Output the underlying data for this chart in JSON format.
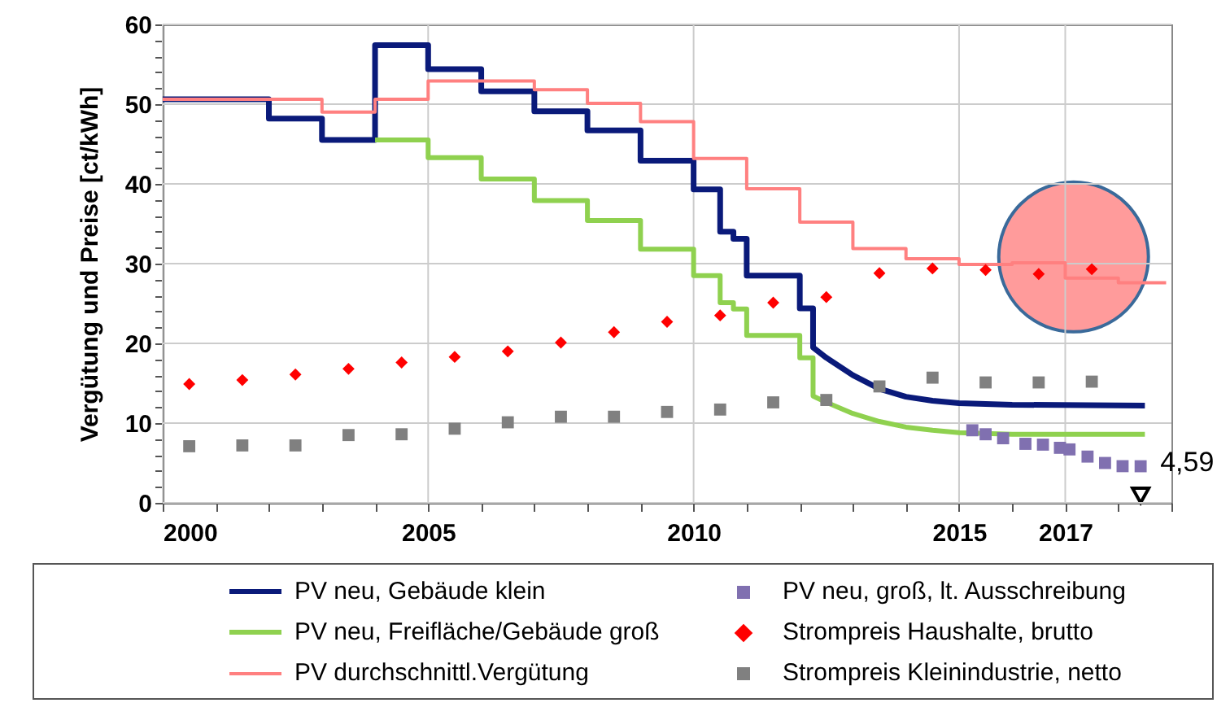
{
  "chart_data": {
    "type": "line",
    "ylabel": "Vergütung und Preise [ct/kWh]",
    "xlim": [
      2000,
      2019
    ],
    "ylim": [
      0,
      60
    ],
    "xticks": [
      2000,
      {
        "value": 2001,
        "label": null
      },
      {
        "value": 2002,
        "label": null
      },
      {
        "value": 2003,
        "label": null
      },
      {
        "value": 2004,
        "label": null
      },
      2005,
      {
        "value": 2006,
        "label": null
      },
      {
        "value": 2007,
        "label": null
      },
      {
        "value": 2008,
        "label": null
      },
      {
        "value": 2009,
        "label": null
      },
      2010,
      {
        "value": 2011,
        "label": null
      },
      {
        "value": 2012,
        "label": null
      },
      {
        "value": 2013,
        "label": null
      },
      {
        "value": 2014,
        "label": null
      },
      2015,
      {
        "value": 2016,
        "label": null
      },
      2017,
      {
        "value": 2018,
        "label": null
      },
      {
        "value": 2019,
        "label": null
      }
    ],
    "yticks": [
      0,
      {
        "value": 2,
        "label": null
      },
      {
        "value": 4,
        "label": null
      },
      {
        "value": 6,
        "label": null
      },
      {
        "value": 8,
        "label": null
      },
      10,
      {
        "value": 12,
        "label": null
      },
      {
        "value": 14,
        "label": null
      },
      {
        "value": 16,
        "label": null
      },
      {
        "value": 18,
        "label": null
      },
      20,
      {
        "value": 22,
        "label": null
      },
      {
        "value": 24,
        "label": null
      },
      {
        "value": 26,
        "label": null
      },
      {
        "value": 28,
        "label": null
      },
      30,
      {
        "value": 32,
        "label": null
      },
      {
        "value": 34,
        "label": null
      },
      {
        "value": 36,
        "label": null
      },
      {
        "value": 38,
        "label": null
      },
      40,
      {
        "value": 42,
        "label": null
      },
      {
        "value": 44,
        "label": null
      },
      {
        "value": 46,
        "label": null
      },
      {
        "value": 48,
        "label": null
      },
      50,
      {
        "value": 52,
        "label": null
      },
      {
        "value": 54,
        "label": null
      },
      {
        "value": 56,
        "label": null
      },
      {
        "value": 58,
        "label": null
      },
      60
    ],
    "grid": true,
    "legend": "bottom",
    "series": [
      {
        "name": "PV neu, Gebäude klein",
        "color": "#0a1a7a",
        "x": [
          2000,
          2002,
          2002,
          2003,
          2003,
          2004,
          2004,
          2005,
          2005,
          2006,
          2006,
          2007,
          2007,
          2008,
          2008,
          2009,
          2009,
          2010,
          2010,
          2010.5,
          2010.5,
          2010.75,
          2010.75,
          2011,
          2011,
          2012,
          2012,
          2012.25,
          2012.25,
          2012.5,
          2013,
          2013.5,
          2014,
          2014.5,
          2015,
          2016,
          2018.5
        ],
        "values": [
          50.6,
          50.6,
          48.2,
          48.2,
          45.5,
          45.5,
          57.4,
          57.4,
          54.4,
          54.4,
          51.6,
          51.6,
          49.1,
          49.1,
          46.7,
          46.7,
          42.9,
          42.9,
          39.3,
          39.3,
          34.0,
          34.0,
          33.1,
          33.1,
          28.5,
          28.5,
          24.4,
          24.4,
          19.5,
          18.2,
          16.0,
          14.3,
          13.3,
          12.8,
          12.5,
          12.3,
          12.2
        ]
      },
      {
        "name": "PV neu, Freifläche/Gebäude groß",
        "color": "#8fd14f",
        "x": [
          2004,
          2005,
          2005,
          2006,
          2006,
          2007,
          2007,
          2008,
          2008,
          2009,
          2009,
          2010,
          2010,
          2010.5,
          2010.5,
          2010.75,
          2010.75,
          2011,
          2011,
          2012,
          2012,
          2012.25,
          2012.25,
          2012.5,
          2013,
          2013.5,
          2014,
          2014.5,
          2015,
          2016,
          2018.5
        ],
        "values": [
          45.5,
          45.5,
          43.3,
          43.3,
          40.6,
          40.6,
          37.9,
          37.9,
          35.4,
          35.4,
          31.8,
          31.8,
          28.5,
          28.5,
          25.1,
          25.1,
          24.3,
          24.3,
          21.0,
          21.0,
          18.2,
          18.2,
          13.4,
          12.6,
          11.2,
          10.2,
          9.5,
          9.1,
          8.8,
          8.6,
          8.6
        ]
      },
      {
        "name": "PV durchschnittl.Vergütung",
        "color": "#ff8080",
        "x": [
          2000,
          2003,
          2003,
          2004,
          2004,
          2005,
          2005,
          2007,
          2007,
          2008,
          2008,
          2009,
          2009,
          2010,
          2010,
          2011,
          2011,
          2012,
          2012,
          2013,
          2013,
          2014,
          2014,
          2015,
          2015,
          2016,
          2016,
          2017,
          2017,
          2018,
          2018,
          2018.9
        ],
        "values": [
          50.6,
          50.6,
          49.0,
          49.0,
          50.6,
          50.6,
          52.9,
          52.9,
          51.8,
          51.8,
          50.1,
          50.1,
          47.8,
          47.8,
          43.2,
          43.2,
          39.4,
          39.4,
          35.2,
          35.2,
          31.9,
          31.9,
          30.6,
          30.6,
          29.9,
          29.9,
          30.1,
          30.1,
          28.2,
          28.2,
          27.6,
          27.6
        ]
      },
      {
        "name": "PV neu, groß, lt. Ausschreibung",
        "type": "scatter",
        "marker": "square",
        "color": "#8070b0",
        "x": [
          2015.25,
          2015.5,
          2015.83,
          2016.25,
          2016.58,
          2016.9,
          2017.08,
          2017.42,
          2017.75,
          2018.08,
          2018.42
        ],
        "values": [
          9.1,
          8.6,
          8.1,
          7.4,
          7.3,
          6.9,
          6.7,
          5.8,
          5.0,
          4.6,
          4.59
        ]
      },
      {
        "name": "Strompreis Haushalte, brutto",
        "type": "scatter",
        "marker": "diamond",
        "color": "#ff0000",
        "x": [
          2000.5,
          2001.5,
          2002.5,
          2003.5,
          2004.5,
          2005.5,
          2006.5,
          2007.5,
          2008.5,
          2009.5,
          2010.5,
          2011.5,
          2012.5,
          2013.5,
          2014.5,
          2015.5,
          2016.5,
          2017.5
        ],
        "values": [
          14.9,
          15.4,
          16.1,
          16.8,
          17.6,
          18.3,
          19.0,
          20.1,
          21.4,
          22.7,
          23.5,
          25.1,
          25.8,
          28.8,
          29.4,
          29.2,
          28.7,
          29.3
        ]
      },
      {
        "name": "Strompreis Kleinindustrie, netto",
        "type": "scatter",
        "marker": "square",
        "color": "#808080",
        "x": [
          2000.5,
          2001.5,
          2002.5,
          2003.5,
          2004.5,
          2005.5,
          2006.5,
          2007.5,
          2008.5,
          2009.5,
          2010.5,
          2011.5,
          2012.5,
          2013.5,
          2014.5,
          2015.5,
          2016.5,
          2017.5
        ],
        "values": [
          7.1,
          7.2,
          7.2,
          8.5,
          8.6,
          9.3,
          10.1,
          10.8,
          10.8,
          11.4,
          11.7,
          12.6,
          12.9,
          14.6,
          15.7,
          15.1,
          15.1,
          15.2
        ]
      }
    ],
    "annotations": [
      {
        "text": "4,59",
        "x": 2018.42,
        "y": 4.59
      }
    ]
  }
}
